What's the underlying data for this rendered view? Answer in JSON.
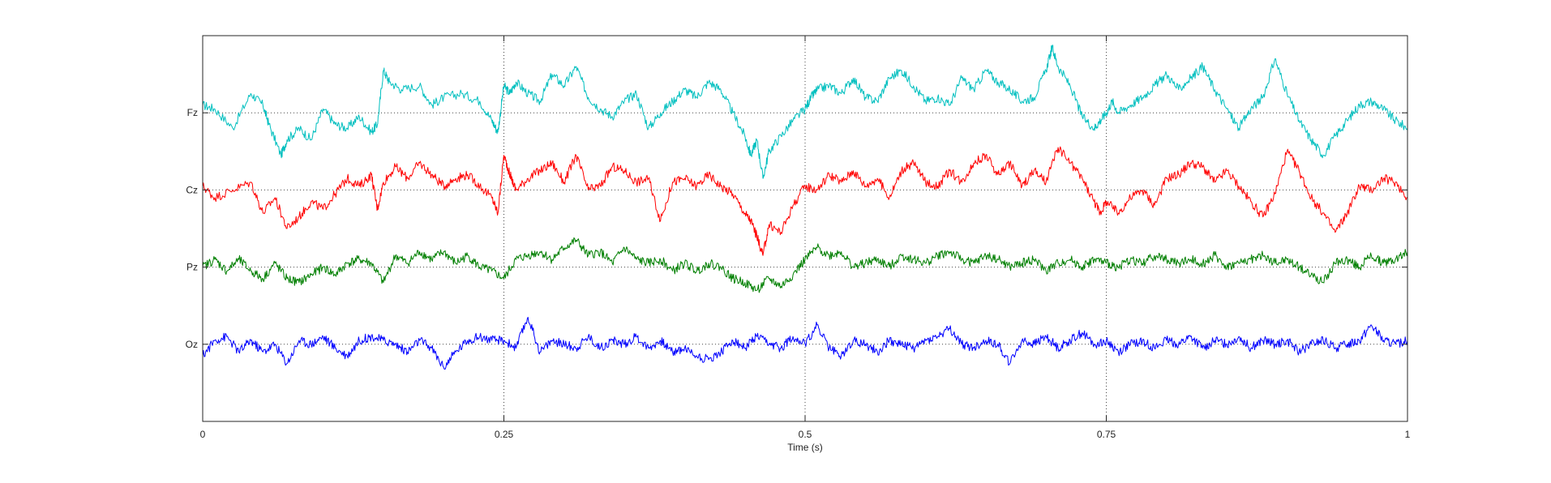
{
  "chart_data": {
    "type": "line",
    "title": "",
    "xlabel": "Time (s)",
    "ylabel": "",
    "xlim": [
      0,
      1
    ],
    "x_ticks": [
      0,
      0.25,
      0.5,
      0.75,
      1
    ],
    "x_tick_labels": [
      "0",
      "0.25",
      "0.5",
      "0.75",
      "1"
    ],
    "grid": true,
    "legend": "none",
    "series": [
      {
        "name": "Fz",
        "color": "#00bfbf",
        "offset": 0,
        "x": [
          0,
          0.01,
          0.025,
          0.04,
          0.05,
          0.055,
          0.065,
          0.07,
          0.08,
          0.09,
          0.1,
          0.11,
          0.12,
          0.13,
          0.14,
          0.145,
          0.15,
          0.155,
          0.165,
          0.18,
          0.19,
          0.2,
          0.215,
          0.23,
          0.24,
          0.245,
          0.25,
          0.255,
          0.26,
          0.27,
          0.28,
          0.29,
          0.3,
          0.31,
          0.32,
          0.33,
          0.34,
          0.35,
          0.36,
          0.37,
          0.38,
          0.39,
          0.4,
          0.41,
          0.42,
          0.43,
          0.44,
          0.45,
          0.455,
          0.46,
          0.465,
          0.47,
          0.48,
          0.49,
          0.5,
          0.505,
          0.51,
          0.52,
          0.53,
          0.54,
          0.55,
          0.56,
          0.57,
          0.58,
          0.59,
          0.6,
          0.61,
          0.62,
          0.63,
          0.64,
          0.65,
          0.66,
          0.67,
          0.68,
          0.69,
          0.7,
          0.705,
          0.71,
          0.72,
          0.73,
          0.74,
          0.745,
          0.75,
          0.755,
          0.76,
          0.77,
          0.78,
          0.79,
          0.8,
          0.81,
          0.82,
          0.83,
          0.84,
          0.85,
          0.86,
          0.87,
          0.88,
          0.89,
          0.9,
          0.91,
          0.92,
          0.93,
          0.94,
          0.95,
          0.96,
          0.97,
          0.98,
          0.99,
          1
        ],
        "y": [
          0.1,
          0.05,
          -0.2,
          0.25,
          0.1,
          -0.15,
          -0.55,
          -0.35,
          -0.2,
          -0.35,
          0.05,
          -0.15,
          -0.2,
          -0.05,
          -0.25,
          -0.15,
          0.55,
          0.4,
          0.3,
          0.35,
          0.1,
          0.2,
          0.25,
          0.15,
          -0.1,
          -0.25,
          0.35,
          0.25,
          0.4,
          0.25,
          0.15,
          0.5,
          0.35,
          0.6,
          0.2,
          0.05,
          -0.05,
          0.15,
          0.25,
          -0.2,
          0.0,
          0.15,
          0.3,
          0.2,
          0.4,
          0.3,
          0.0,
          -0.3,
          -0.55,
          -0.35,
          -0.85,
          -0.5,
          -0.3,
          -0.1,
          0.05,
          0.2,
          0.3,
          0.35,
          0.25,
          0.45,
          0.2,
          0.15,
          0.45,
          0.55,
          0.35,
          0.15,
          0.2,
          0.1,
          0.45,
          0.3,
          0.55,
          0.4,
          0.3,
          0.15,
          0.2,
          0.55,
          0.85,
          0.6,
          0.35,
          -0.05,
          -0.2,
          -0.1,
          0.0,
          0.15,
          0.0,
          0.1,
          0.2,
          0.35,
          0.5,
          0.3,
          0.45,
          0.6,
          0.3,
          0.05,
          -0.2,
          0.05,
          0.2,
          0.7,
          0.25,
          -0.1,
          -0.35,
          -0.55,
          -0.3,
          -0.1,
          0.1,
          0.15,
          0.05,
          -0.1,
          -0.2
        ]
      },
      {
        "name": "Cz",
        "color": "#ff0000",
        "offset": -1,
        "x": [
          0,
          0.01,
          0.025,
          0.04,
          0.05,
          0.06,
          0.07,
          0.08,
          0.09,
          0.1,
          0.11,
          0.12,
          0.13,
          0.14,
          0.145,
          0.15,
          0.16,
          0.17,
          0.18,
          0.19,
          0.2,
          0.21,
          0.22,
          0.23,
          0.24,
          0.245,
          0.25,
          0.255,
          0.26,
          0.27,
          0.28,
          0.29,
          0.3,
          0.31,
          0.32,
          0.33,
          0.34,
          0.35,
          0.36,
          0.37,
          0.38,
          0.39,
          0.4,
          0.41,
          0.42,
          0.43,
          0.44,
          0.45,
          0.455,
          0.46,
          0.465,
          0.47,
          0.48,
          0.49,
          0.5,
          0.51,
          0.52,
          0.53,
          0.54,
          0.55,
          0.56,
          0.57,
          0.58,
          0.59,
          0.6,
          0.61,
          0.62,
          0.63,
          0.64,
          0.65,
          0.66,
          0.67,
          0.68,
          0.69,
          0.7,
          0.71,
          0.72,
          0.73,
          0.74,
          0.745,
          0.75,
          0.76,
          0.77,
          0.78,
          0.79,
          0.8,
          0.81,
          0.82,
          0.83,
          0.84,
          0.85,
          0.86,
          0.87,
          0.88,
          0.89,
          0.9,
          0.91,
          0.92,
          0.93,
          0.94,
          0.95,
          0.96,
          0.97,
          0.98,
          0.99,
          1
        ],
        "y": [
          0.05,
          -0.1,
          0.0,
          0.1,
          -0.3,
          -0.1,
          -0.5,
          -0.35,
          -0.15,
          -0.25,
          -0.05,
          0.15,
          0.05,
          0.2,
          -0.25,
          0.1,
          0.3,
          0.15,
          0.35,
          0.2,
          0.05,
          0.15,
          0.2,
          0.05,
          -0.1,
          -0.3,
          0.45,
          0.2,
          0.0,
          0.15,
          0.25,
          0.35,
          0.1,
          0.45,
          0.0,
          0.05,
          0.3,
          0.25,
          0.1,
          0.15,
          -0.4,
          0.1,
          0.15,
          0.05,
          0.2,
          0.05,
          -0.05,
          -0.3,
          -0.4,
          -0.6,
          -0.85,
          -0.45,
          -0.55,
          -0.2,
          0.05,
          0.0,
          0.2,
          0.1,
          0.25,
          0.05,
          0.15,
          -0.1,
          0.25,
          0.35,
          0.1,
          0.05,
          0.25,
          0.1,
          0.35,
          0.45,
          0.2,
          0.35,
          0.05,
          0.25,
          0.1,
          0.55,
          0.35,
          0.15,
          -0.15,
          -0.3,
          -0.15,
          -0.3,
          -0.1,
          0.0,
          -0.2,
          0.15,
          0.2,
          0.35,
          0.3,
          0.1,
          0.25,
          0.05,
          -0.15,
          -0.35,
          -0.05,
          0.5,
          0.25,
          -0.1,
          -0.3,
          -0.55,
          -0.3,
          0.05,
          0.0,
          0.15,
          0.1,
          -0.1
        ]
      },
      {
        "name": "Pz",
        "color": "#007f00",
        "offset": -2,
        "x": [
          0,
          0.01,
          0.02,
          0.03,
          0.04,
          0.05,
          0.06,
          0.07,
          0.08,
          0.09,
          0.1,
          0.11,
          0.12,
          0.13,
          0.14,
          0.15,
          0.16,
          0.17,
          0.18,
          0.19,
          0.2,
          0.21,
          0.22,
          0.23,
          0.24,
          0.25,
          0.26,
          0.27,
          0.28,
          0.29,
          0.3,
          0.31,
          0.32,
          0.33,
          0.34,
          0.35,
          0.36,
          0.37,
          0.38,
          0.39,
          0.4,
          0.41,
          0.42,
          0.43,
          0.44,
          0.45,
          0.46,
          0.47,
          0.48,
          0.49,
          0.5,
          0.51,
          0.52,
          0.53,
          0.54,
          0.55,
          0.56,
          0.57,
          0.58,
          0.59,
          0.6,
          0.61,
          0.62,
          0.63,
          0.64,
          0.65,
          0.66,
          0.67,
          0.68,
          0.69,
          0.7,
          0.71,
          0.72,
          0.73,
          0.74,
          0.75,
          0.76,
          0.77,
          0.78,
          0.79,
          0.8,
          0.81,
          0.82,
          0.83,
          0.84,
          0.85,
          0.86,
          0.87,
          0.88,
          0.89,
          0.9,
          0.91,
          0.92,
          0.93,
          0.94,
          0.95,
          0.96,
          0.97,
          0.98,
          0.99,
          1
        ],
        "y": [
          0.0,
          0.1,
          -0.05,
          0.1,
          -0.05,
          -0.15,
          0.05,
          -0.15,
          -0.2,
          -0.1,
          0.0,
          -0.1,
          0.05,
          0.1,
          0.05,
          -0.2,
          0.15,
          0.05,
          0.2,
          0.1,
          0.2,
          0.05,
          0.15,
          0.0,
          -0.05,
          -0.15,
          0.1,
          0.15,
          0.2,
          0.1,
          0.25,
          0.35,
          0.15,
          0.2,
          0.05,
          0.25,
          0.1,
          0.05,
          0.1,
          -0.05,
          0.05,
          -0.05,
          0.05,
          0.0,
          -0.15,
          -0.2,
          -0.3,
          -0.15,
          -0.25,
          -0.1,
          0.1,
          0.25,
          0.15,
          0.2,
          0.0,
          0.05,
          0.1,
          0.0,
          0.15,
          0.1,
          0.05,
          0.15,
          0.2,
          0.1,
          0.05,
          0.15,
          0.1,
          0.0,
          0.05,
          0.1,
          -0.05,
          0.05,
          0.1,
          0.0,
          0.1,
          0.05,
          0.0,
          0.1,
          0.05,
          0.15,
          0.1,
          0.05,
          0.1,
          0.05,
          0.15,
          0.0,
          0.05,
          0.1,
          0.15,
          0.05,
          0.1,
          0.0,
          -0.1,
          -0.2,
          0.05,
          0.1,
          0.0,
          0.15,
          0.05,
          0.1,
          0.2
        ]
      },
      {
        "name": "Oz",
        "color": "#0000ff",
        "offset": -3,
        "x": [
          0,
          0.01,
          0.02,
          0.03,
          0.04,
          0.05,
          0.06,
          0.07,
          0.08,
          0.09,
          0.1,
          0.11,
          0.12,
          0.13,
          0.14,
          0.15,
          0.16,
          0.17,
          0.18,
          0.19,
          0.2,
          0.21,
          0.22,
          0.23,
          0.24,
          0.25,
          0.26,
          0.27,
          0.28,
          0.29,
          0.3,
          0.31,
          0.32,
          0.33,
          0.34,
          0.35,
          0.36,
          0.37,
          0.38,
          0.39,
          0.4,
          0.41,
          0.42,
          0.43,
          0.44,
          0.45,
          0.46,
          0.47,
          0.48,
          0.49,
          0.5,
          0.51,
          0.52,
          0.53,
          0.54,
          0.55,
          0.56,
          0.57,
          0.58,
          0.59,
          0.6,
          0.61,
          0.62,
          0.63,
          0.64,
          0.65,
          0.66,
          0.67,
          0.68,
          0.69,
          0.7,
          0.71,
          0.72,
          0.73,
          0.74,
          0.75,
          0.76,
          0.77,
          0.78,
          0.79,
          0.8,
          0.81,
          0.82,
          0.83,
          0.84,
          0.85,
          0.86,
          0.87,
          0.88,
          0.89,
          0.9,
          0.91,
          0.92,
          0.93,
          0.94,
          0.95,
          0.96,
          0.97,
          0.98,
          0.99,
          1
        ],
        "y": [
          -0.15,
          0.05,
          0.1,
          -0.1,
          0.05,
          -0.1,
          0.0,
          -0.25,
          0.05,
          0.0,
          0.1,
          -0.05,
          -0.15,
          0.05,
          0.1,
          0.05,
          0.0,
          -0.1,
          0.05,
          -0.05,
          -0.3,
          -0.1,
          0.05,
          0.1,
          0.05,
          0.05,
          -0.05,
          0.35,
          -0.1,
          0.05,
          0.0,
          -0.05,
          0.1,
          -0.05,
          0.05,
          0.0,
          0.1,
          -0.05,
          0.05,
          -0.1,
          -0.05,
          -0.15,
          -0.2,
          -0.1,
          0.05,
          -0.05,
          0.1,
          0.0,
          -0.05,
          0.1,
          0.0,
          0.25,
          -0.05,
          -0.15,
          0.05,
          0.0,
          -0.1,
          0.05,
          0.0,
          -0.05,
          0.05,
          0.1,
          0.2,
          0.0,
          -0.05,
          0.05,
          0.0,
          -0.25,
          0.05,
          0.0,
          0.1,
          -0.05,
          0.05,
          0.15,
          0.0,
          0.05,
          -0.1,
          0.0,
          0.05,
          -0.05,
          0.05,
          0.0,
          0.1,
          -0.05,
          0.05,
          0.0,
          0.1,
          -0.05,
          0.05,
          0.0,
          0.05,
          -0.1,
          0.0,
          0.05,
          -0.05,
          0.0,
          0.05,
          0.25,
          0.05,
          0.0,
          0.05
        ]
      }
    ]
  }
}
